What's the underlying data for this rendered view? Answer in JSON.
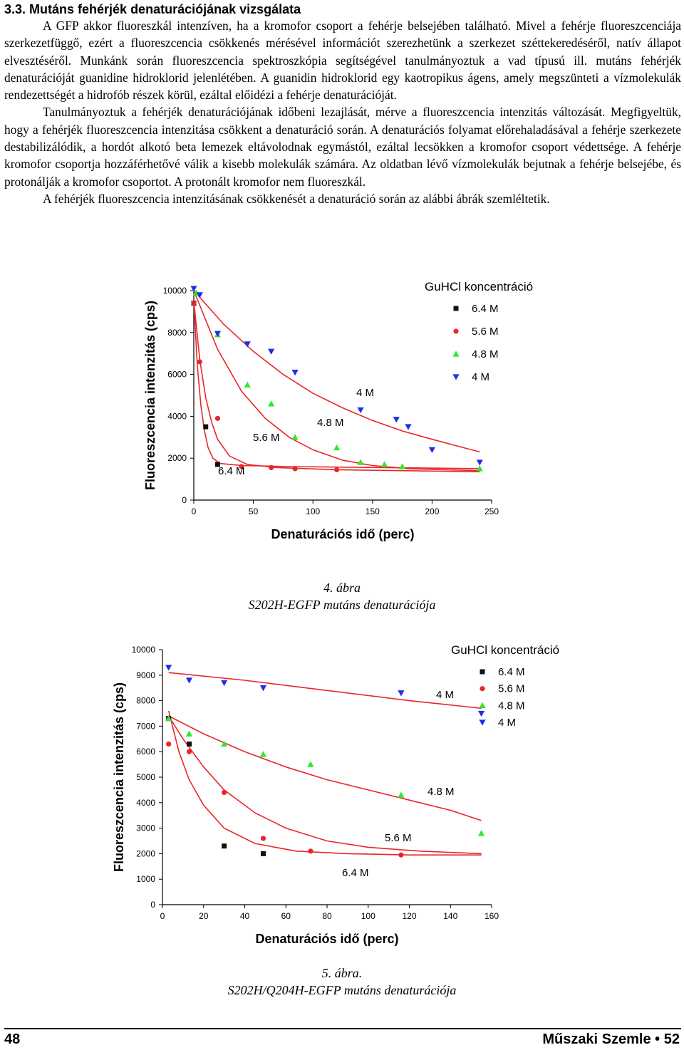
{
  "section": {
    "title": "3.3. Mutáns fehérjék denaturációjának vizsgálata"
  },
  "paragraphs": [
    "A GFP akkor fluoreszkál intenzíven, ha a kromofor csoport a fehérje belsejében található. Mivel a fehérje fluoreszcenciája szerkezetfüggő, ezért a fluoreszcencia csökkenés mérésével információt szerezhetünk a szerkezet széttekeredéséről, natív állapot elvesztéséről. Munkánk során fluoreszcencia spektroszkópia segítségével tanulmányoztuk a vad típusú ill. mutáns fehérjék denaturációját guanidine hidroklorid jelenlétében. A guanidin hidroklorid egy kaotropikus ágens, amely megszünteti a vízmolekulák rendezettségét a hidrofób részek körül, ezáltal előidézi a fehérje denaturációját.",
    "Tanulmányoztuk a fehérjék denaturációjának időbeni lezajlását, mérve a fluoreszcencia intenzitás változását. Megfigyeltük, hogy a fehérjék fluoreszcencia intenzitása csökkent a denaturáció során. A denaturációs folyamat előrehaladásával a fehérje szerkezete destabilizálódik, a hordót alkotó beta lemezek eltávolodnak egymástól, ezáltal lecsökken a kromofor csoport védettsége. A fehérje kromofor csoportja hozzáférhetővé válik a kisebb molekulák számára. Az oldatban lévő vízmolekulák bejutnak a fehérje belsejébe, és protonálják a kromofor csoportot. A protonált kromofor nem fluoreszkál.",
    "A fehérjék fluoreszcencia intenzitásának csökkenését a denaturáció során az alábbi ábrák szemléltetik."
  ],
  "figures": [
    {
      "number": "4. ábra",
      "title": "S202H-EGFP mutáns denaturációja"
    },
    {
      "number": "5. ábra.",
      "title": "S202H/Q204H-EGFP mutáns denaturációja"
    }
  ],
  "footer": {
    "page_left": "48",
    "journal": "Műszaki Szemle",
    "page_right": "52"
  },
  "colors": {
    "6.4 M": "#111111",
    "5.6 M": "#e8262a",
    "4.8 M": "#2ee82e",
    "4 M": "#1f2ee6",
    "fit": "#e8262a"
  },
  "chart_data": [
    {
      "type": "scatter",
      "xlabel": "Denaturációs idő (perc)",
      "ylabel": "Fluoreszcencia intenzitás (cps)",
      "xlim": [
        0,
        250
      ],
      "ylim": [
        0,
        10000
      ],
      "xticks": [
        0,
        50,
        100,
        150,
        200,
        250
      ],
      "yticks": [
        0,
        2000,
        4000,
        6000,
        8000,
        10000
      ],
      "legend_title": "GuHCl koncentráció",
      "legend_position": "top-right",
      "series": [
        {
          "name": "6.4 M",
          "marker": "square",
          "x": [
            0,
            10,
            20
          ],
          "y": [
            9400,
            3500,
            1700
          ]
        },
        {
          "name": "5.6 M",
          "marker": "circle",
          "x": [
            0,
            5,
            20,
            40,
            65,
            85,
            120
          ],
          "y": [
            9400,
            6600,
            3900,
            1600,
            1550,
            1500,
            1450
          ]
        },
        {
          "name": "4.8 M",
          "marker": "triangle-up",
          "x": [
            2,
            20,
            45,
            65,
            85,
            120,
            140,
            160,
            175,
            240
          ],
          "y": [
            9900,
            7900,
            5500,
            4600,
            3000,
            2500,
            1800,
            1700,
            1600,
            1500
          ]
        },
        {
          "name": "4 M",
          "marker": "triangle-down",
          "x": [
            0,
            5,
            20,
            45,
            65,
            85,
            140,
            170,
            180,
            200,
            240
          ],
          "y": [
            10100,
            9800,
            7950,
            7450,
            7100,
            6100,
            4300,
            3850,
            3500,
            2400,
            1800
          ]
        }
      ],
      "fits": [
        {
          "label": "6.4 M",
          "curve": [
            [
              0,
              9500
            ],
            [
              3,
              6400
            ],
            [
              6,
              4500
            ],
            [
              9,
              3300
            ],
            [
              12,
              2500
            ],
            [
              16,
              2000
            ],
            [
              22,
              1750
            ],
            [
              40,
              1650
            ],
            [
              80,
              1600
            ],
            [
              160,
              1550
            ],
            [
              240,
              1500
            ]
          ]
        },
        {
          "label": "5.6 M",
          "curve": [
            [
              0,
              9500
            ],
            [
              5,
              6700
            ],
            [
              10,
              4900
            ],
            [
              15,
              3700
            ],
            [
              20,
              2900
            ],
            [
              30,
              2100
            ],
            [
              45,
              1700
            ],
            [
              70,
              1550
            ],
            [
              120,
              1450
            ],
            [
              180,
              1400
            ],
            [
              240,
              1350
            ]
          ]
        },
        {
          "label": "4.8 M",
          "curve": [
            [
              0,
              10000
            ],
            [
              20,
              7200
            ],
            [
              40,
              5200
            ],
            [
              60,
              3900
            ],
            [
              80,
              3000
            ],
            [
              100,
              2400
            ],
            [
              125,
              1900
            ],
            [
              150,
              1650
            ],
            [
              180,
              1500
            ],
            [
              210,
              1450
            ],
            [
              240,
              1400
            ]
          ]
        },
        {
          "label": "4 M",
          "curve": [
            [
              0,
              10000
            ],
            [
              25,
              8400
            ],
            [
              50,
              7100
            ],
            [
              75,
              6000
            ],
            [
              100,
              5100
            ],
            [
              125,
              4400
            ],
            [
              150,
              3800
            ],
            [
              175,
              3300
            ],
            [
              200,
              2900
            ],
            [
              220,
              2600
            ],
            [
              240,
              2300
            ]
          ]
        }
      ],
      "annotations": [
        "4 M",
        "4.8 M",
        "5.6 M",
        "6.4 M"
      ]
    },
    {
      "type": "scatter",
      "xlabel": "Denaturációs idő (perc)",
      "ylabel": "Fluoreszcencia intenzitás (cps)",
      "xlim": [
        0,
        160
      ],
      "ylim": [
        0,
        10000
      ],
      "xticks": [
        0,
        20,
        40,
        60,
        80,
        100,
        120,
        140,
        160
      ],
      "yticks": [
        0,
        1000,
        2000,
        3000,
        4000,
        5000,
        6000,
        7000,
        8000,
        9000,
        10000
      ],
      "legend_title": "GuHCl koncentráció",
      "legend_position": "top-right",
      "series": [
        {
          "name": "6.4 M",
          "marker": "square",
          "x": [
            3,
            13,
            30,
            49
          ],
          "y": [
            7300,
            6300,
            2300,
            2000
          ]
        },
        {
          "name": "5.6 M",
          "marker": "circle",
          "x": [
            3,
            13,
            30,
            49,
            72,
            116
          ],
          "y": [
            6300,
            6000,
            4400,
            2600,
            2100,
            1950
          ]
        },
        {
          "name": "4.8 M",
          "marker": "triangle-up",
          "x": [
            3,
            13,
            30,
            49,
            72,
            116,
            155
          ],
          "y": [
            7300,
            6700,
            6300,
            5900,
            5500,
            4300,
            2800
          ]
        },
        {
          "name": "4 M",
          "marker": "triangle-down",
          "x": [
            3,
            13,
            30,
            49,
            116,
            155
          ],
          "y": [
            9300,
            8800,
            8700,
            8500,
            8300,
            7500
          ]
        }
      ],
      "fits": [
        {
          "label": "6.4 M",
          "curve": [
            [
              3,
              7600
            ],
            [
              8,
              6000
            ],
            [
              13,
              4900
            ],
            [
              20,
              3900
            ],
            [
              30,
              3000
            ],
            [
              45,
              2400
            ],
            [
              65,
              2100
            ],
            [
              90,
              2000
            ],
            [
              120,
              1950
            ],
            [
              155,
              1950
            ]
          ]
        },
        {
          "label": "5.6 M",
          "curve": [
            [
              3,
              7400
            ],
            [
              10,
              6500
            ],
            [
              20,
              5400
            ],
            [
              30,
              4500
            ],
            [
              45,
              3600
            ],
            [
              60,
              3000
            ],
            [
              80,
              2500
            ],
            [
              100,
              2250
            ],
            [
              125,
              2100
            ],
            [
              155,
              2000
            ]
          ]
        },
        {
          "label": "4.8 M",
          "curve": [
            [
              3,
              7400
            ],
            [
              20,
              6700
            ],
            [
              40,
              6000
            ],
            [
              60,
              5400
            ],
            [
              80,
              4900
            ],
            [
              100,
              4500
            ],
            [
              120,
              4100
            ],
            [
              140,
              3700
            ],
            [
              155,
              3300
            ]
          ]
        },
        {
          "label": "4 M",
          "curve": [
            [
              3,
              9100
            ],
            [
              40,
              8800
            ],
            [
              80,
              8400
            ],
            [
              120,
              8000
            ],
            [
              155,
              7700
            ]
          ]
        }
      ],
      "annotations": [
        "4 M",
        "4.8 M",
        "5.6 M",
        "6.4 M"
      ]
    }
  ]
}
